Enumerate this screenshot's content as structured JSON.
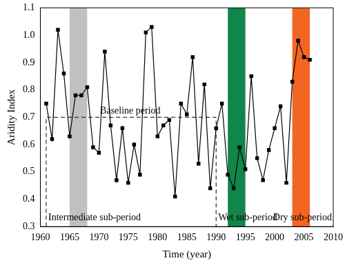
{
  "chart_data": {
    "type": "line",
    "x_label": "Time (year)",
    "y_label": "Aridity Index",
    "x": [
      1961,
      1962,
      1963,
      1964,
      1965,
      1966,
      1967,
      1968,
      1969,
      1970,
      1971,
      1972,
      1973,
      1974,
      1975,
      1976,
      1977,
      1978,
      1979,
      1980,
      1981,
      1982,
      1983,
      1984,
      1985,
      1986,
      1987,
      1988,
      1989,
      1990,
      1991,
      1992,
      1993,
      1994,
      1995,
      1996,
      1997,
      1998,
      1999,
      2000,
      2001,
      2002,
      2003,
      2004,
      2005,
      2006
    ],
    "values": [
      0.75,
      0.62,
      1.02,
      0.86,
      0.63,
      0.78,
      0.78,
      0.81,
      0.59,
      0.57,
      0.94,
      0.67,
      0.47,
      0.66,
      0.46,
      0.6,
      0.49,
      1.01,
      1.03,
      0.63,
      0.67,
      0.69,
      0.41,
      0.75,
      0.71,
      0.92,
      0.53,
      0.82,
      0.44,
      0.66,
      0.75,
      0.49,
      0.44,
      0.59,
      0.51,
      0.85,
      0.55,
      0.47,
      0.58,
      0.66,
      0.74,
      0.46,
      0.83,
      0.98,
      0.92,
      0.91
    ],
    "color": "#000000",
    "marker": "square",
    "line_style": "solid",
    "xlim": [
      1960,
      2010
    ],
    "xticks": [
      1960,
      1965,
      1970,
      1975,
      1980,
      1985,
      1990,
      1995,
      2000,
      2005,
      2010
    ],
    "ylim": [
      0.3,
      1.1
    ],
    "yticks": [
      0.3,
      0.4,
      0.5,
      0.6,
      0.7,
      0.8,
      0.9,
      {
        "value": 1,
        "label": "1.0"
      },
      1.1
    ],
    "grid": false,
    "bands": [
      {
        "start": 1965,
        "end": 1968,
        "color": "#c0c0c0"
      },
      {
        "start": 1992,
        "end": 1995,
        "color": "#10864a"
      },
      {
        "start": 2003,
        "end": 2006,
        "color": "#f26522"
      }
    ],
    "baseline": {
      "label": "Baseline period",
      "value": 0.7,
      "start": 1961,
      "end": 1990
    },
    "annotations": [
      "Intermediate sub-period",
      "Wet sub-period",
      "Dry sub-period"
    ]
  }
}
